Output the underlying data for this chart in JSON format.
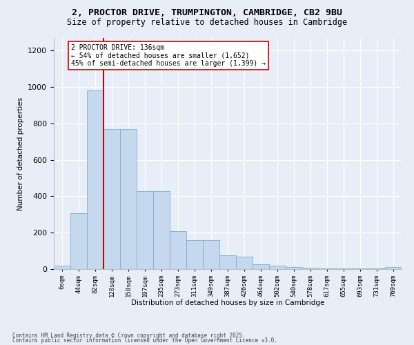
{
  "title_line1": "2, PROCTOR DRIVE, TRUMPINGTON, CAMBRIDGE, CB2 9BU",
  "title_line2": "Size of property relative to detached houses in Cambridge",
  "xlabel": "Distribution of detached houses by size in Cambridge",
  "ylabel": "Number of detached properties",
  "bar_color": "#c5d8ee",
  "bar_edge_color": "#7aaed0",
  "background_color": "#e8eef8",
  "grid_color": "#ffffff",
  "categories": [
    "6sqm",
    "44sqm",
    "82sqm",
    "120sqm",
    "158sqm",
    "197sqm",
    "235sqm",
    "273sqm",
    "311sqm",
    "349sqm",
    "387sqm",
    "426sqm",
    "464sqm",
    "502sqm",
    "540sqm",
    "578sqm",
    "617sqm",
    "655sqm",
    "693sqm",
    "731sqm",
    "769sqm"
  ],
  "values": [
    20,
    308,
    980,
    770,
    770,
    430,
    430,
    210,
    160,
    160,
    75,
    70,
    28,
    18,
    12,
    8,
    5,
    3,
    2,
    2,
    10
  ],
  "ylim": [
    0,
    1270
  ],
  "yticks": [
    0,
    200,
    400,
    600,
    800,
    1000,
    1200
  ],
  "property_label": "2 PROCTOR DRIVE: 136sqm",
  "annotation_line1": "← 54% of detached houses are smaller (1,652)",
  "annotation_line2": "45% of semi-detached houses are larger (1,399) →",
  "vline_color": "#cc0000",
  "vline_position": 2.5,
  "footnote1": "Contains HM Land Registry data © Crown copyright and database right 2025.",
  "footnote2": "Contains public sector information licensed under the Open Government Licence v3.0.",
  "fig_bg_color": "#e8eef8"
}
